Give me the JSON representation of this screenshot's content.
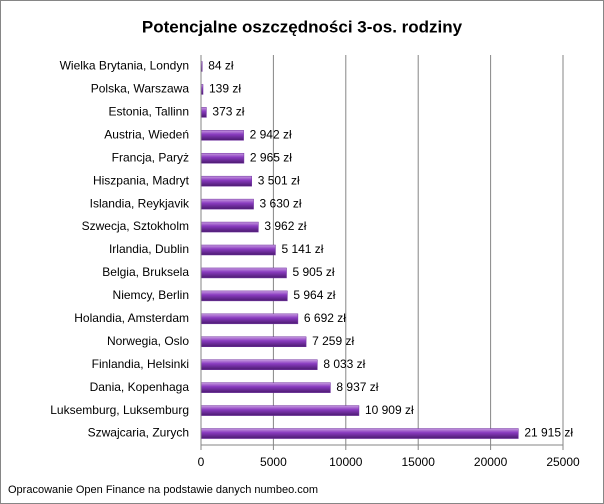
{
  "chart_data": {
    "type": "barh",
    "title": "Potencjalne oszczędności 3-os. rodziny",
    "categories": [
      "Wielka Brytania, Londyn",
      "Polska, Warszawa",
      "Estonia, Tallinn",
      "Austria, Wiedeń",
      "Francja, Paryż",
      "Hiszpania, Madryt",
      "Islandia, Reykjavik",
      "Szwecja, Sztokholm",
      "Irlandia, Dublin",
      "Belgia, Bruksela",
      "Niemcy, Berlin",
      "Holandia, Amsterdam",
      "Norwegia, Oslo",
      "Finlandia, Helsinki",
      "Dania, Kopenhaga",
      "Luksemburg, Luksemburg",
      "Szwajcaria, Zurych"
    ],
    "values": [
      84,
      139,
      373,
      2942,
      2965,
      3501,
      3630,
      3962,
      5141,
      5905,
      5964,
      6692,
      7259,
      8033,
      8937,
      10909,
      21915
    ],
    "value_labels": [
      "84 zł",
      "139 zł",
      "373 zł",
      "2 942 zł",
      "2 965 zł",
      "3 501 zł",
      "3 630 zł",
      "3 962 zł",
      "5 141 zł",
      "5 905 zł",
      "5 964 zł",
      "6 692 zł",
      "7 259 zł",
      "8 033 zł",
      "8 937 zł",
      "10 909 zł",
      "21 915 zł"
    ],
    "color": "#7030a0",
    "xlim": [
      0,
      25000
    ],
    "xticks": [
      0,
      5000,
      10000,
      15000,
      20000,
      25000
    ],
    "grid": true,
    "source": "Opracowanie Open Finance na podstawie danych numbeo.com"
  }
}
